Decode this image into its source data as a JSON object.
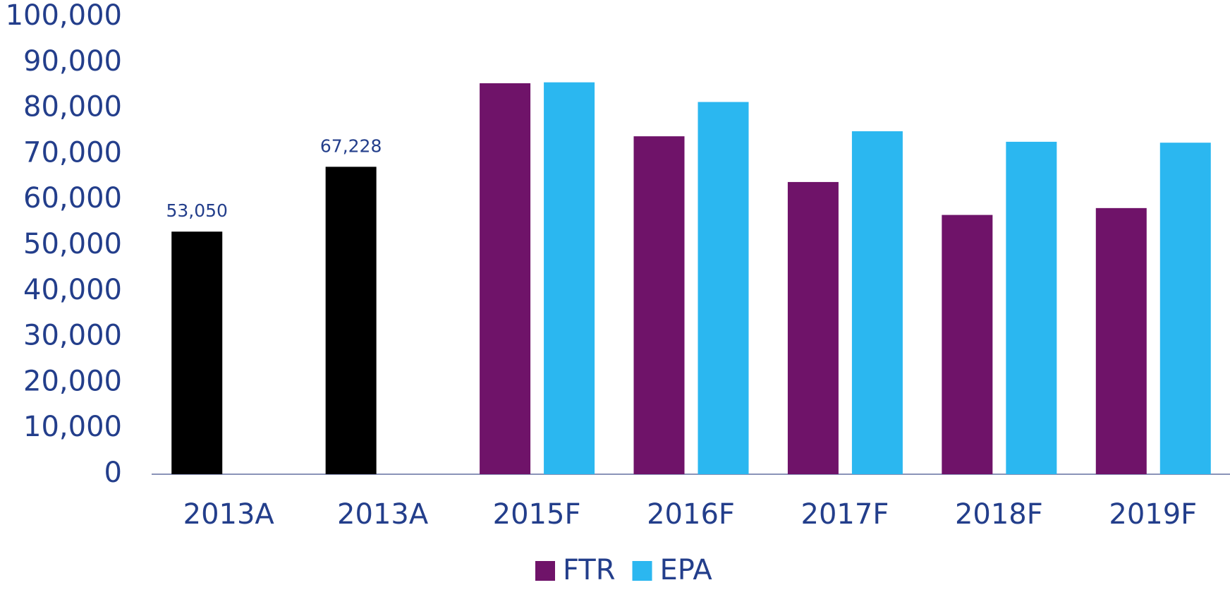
{
  "chart_data": {
    "type": "bar",
    "categories": [
      "2013A",
      "2013A",
      "2015F",
      "2016F",
      "2017F",
      "2018F",
      "2019F"
    ],
    "series": [
      {
        "name": "FTR",
        "color": "#6f1369",
        "colors": [
          "#000000",
          "#000000",
          "#6f1369",
          "#6f1369",
          "#6f1369",
          "#6f1369",
          "#6f1369"
        ],
        "values": [
          53050,
          67228,
          85500,
          73900,
          63900,
          56700,
          58200
        ],
        "value_labels": [
          "53,050",
          "67,228",
          null,
          null,
          null,
          null,
          null
        ]
      },
      {
        "name": "EPA",
        "color": "#2bb7f0",
        "values": [
          null,
          null,
          85700,
          81400,
          75000,
          72700,
          72500
        ]
      }
    ],
    "ylim": [
      0,
      100000
    ],
    "yticks": [
      0,
      {
        "value": 10000,
        "label": "10,000"
      },
      {
        "value": 20000,
        "label": "20,000"
      },
      {
        "value": 30000,
        "label": "30,000"
      },
      {
        "value": 40000,
        "label": "40,000"
      },
      {
        "value": 50000,
        "label": "50,000"
      },
      {
        "value": 60000,
        "label": "60,000"
      },
      {
        "value": 70000,
        "label": "70,000"
      },
      {
        "value": 80000,
        "label": "80,000"
      },
      {
        "value": 90000,
        "label": "90,000"
      },
      {
        "value": 100000,
        "label": "100,000"
      }
    ],
    "grid": false,
    "legend": "bottom"
  }
}
